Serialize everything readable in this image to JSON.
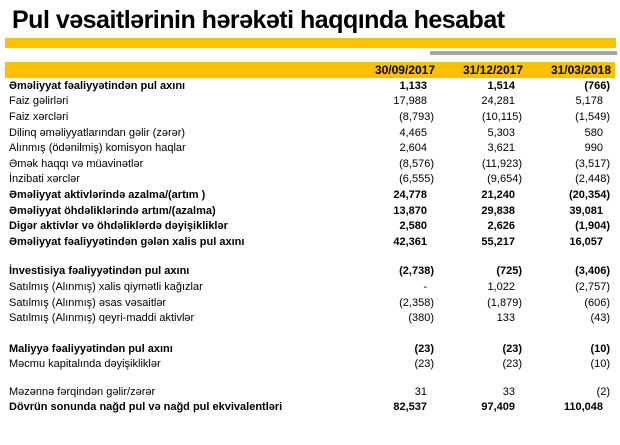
{
  "title": "Pul vəsaitlərinin hərəkəti haqqında hesabat",
  "accent_color": "#FFC000",
  "gray_bar_color": "#A6A6A6",
  "table": {
    "columns": [
      "30/09/2017",
      "31/12/2017",
      "31/03/2018"
    ],
    "rows": [
      {
        "label": "Əməliyyat fəaliyyətindən pul axını",
        "bold": true,
        "values": [
          "1,133",
          "1,514",
          "(766)"
        ]
      },
      {
        "label": "Faiz gəlirləri",
        "bold": false,
        "values": [
          "17,988",
          "24,281",
          "5,178"
        ]
      },
      {
        "label": "Faiz xərcləri",
        "bold": false,
        "values": [
          "(8,793)",
          "(10,115)",
          "(1,549)"
        ]
      },
      {
        "label": "Dilinq əməliyyatlarından gəlir (zərər)",
        "bold": false,
        "values": [
          "4,465",
          "5,303",
          "580"
        ]
      },
      {
        "label": "Alınmış (ödənilmiş) komisyon haqlar",
        "bold": false,
        "values": [
          "2,604",
          "3,621",
          "990"
        ]
      },
      {
        "label": "Əmək haqqı və müavinətlər",
        "bold": false,
        "values": [
          "(8,576)",
          "(11,923)",
          "(3,517)"
        ]
      },
      {
        "label": "İnzibati xərclər",
        "bold": false,
        "values": [
          "(6,555)",
          "(9,654)",
          "(2,448)"
        ]
      },
      {
        "label": "Əməliyyat aktivlərində azalma/(artım )",
        "bold": true,
        "values": [
          "24,778",
          "21,240",
          "(20,354)"
        ]
      },
      {
        "label": "Əməliyyat öhdəliklərində artım/(azalma)",
        "bold": true,
        "values": [
          "13,870",
          "29,838",
          "39,081"
        ]
      },
      {
        "label": "Digər aktivlər və öhdəliklərdə dəyişikliklər",
        "bold": true,
        "values": [
          "2,580",
          "2,626",
          "(1,904)"
        ]
      },
      {
        "label": "Əməliyyat fəaliyyətindən gələn xalis pul axını",
        "bold": true,
        "values": [
          "42,361",
          "55,217",
          "16,057"
        ]
      },
      {
        "type": "spacer",
        "height": 14
      },
      {
        "label": "İnvestisiya fəaliyyətindən pul axını",
        "bold": true,
        "values": [
          "(2,738)",
          "(725)",
          "(3,406)"
        ]
      },
      {
        "label": "Satılmış (Alınmış)  xalis qiymətli kağızlar",
        "bold": false,
        "values": [
          "-",
          "1,022",
          "(2,757)"
        ]
      },
      {
        "label": "Satılmış (Alınmış) əsas vəsaitlər",
        "bold": false,
        "values": [
          "(2,358)",
          "(1,879)",
          "(606)"
        ]
      },
      {
        "label": "Satılmış (Alınmış)  qeyri-maddi aktivlər",
        "bold": false,
        "values": [
          "(380)",
          "133",
          "(43)"
        ]
      },
      {
        "type": "spacer",
        "height": 15
      },
      {
        "label": "Maliyyə fəaliyyətindən pul axını",
        "bold": true,
        "values": [
          "(23)",
          "(23)",
          "(10)"
        ]
      },
      {
        "label": "Məcmu kapitalında dəyişikliklər",
        "bold": false,
        "values": [
          "(23)",
          "(23)",
          "(10)"
        ]
      },
      {
        "type": "spacer",
        "height": 12
      },
      {
        "label": "Məzənnə fərqindən gəlir/zərər",
        "bold": false,
        "values": [
          "31",
          "33",
          "(2)"
        ]
      },
      {
        "label": "Dövrün sonunda nağd pul və nağd pul ekvivalentləri",
        "bold": true,
        "values": [
          "82,537",
          "97,409",
          "110,048"
        ]
      }
    ]
  }
}
